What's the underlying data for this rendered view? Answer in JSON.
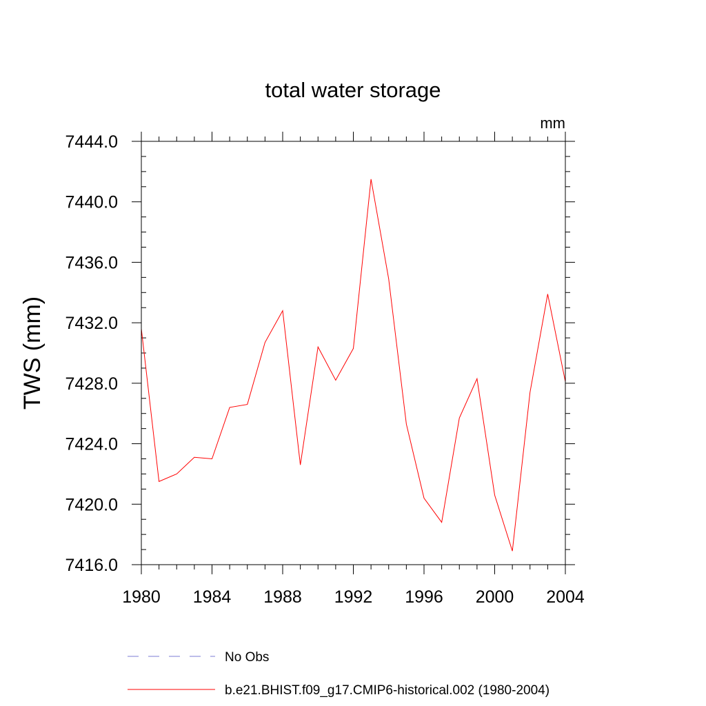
{
  "chart_data": {
    "type": "line",
    "title": "total water storage",
    "units": "mm",
    "xlabel": "",
    "ylabel": "TWS  (mm)",
    "xlim": [
      1980,
      2004
    ],
    "ylim": [
      7416,
      7444
    ],
    "grid": false,
    "x_ticks": [
      1980,
      1984,
      1988,
      1992,
      1996,
      2000,
      2004
    ],
    "x_tick_labels": [
      "1980",
      "1984",
      "1988",
      "1992",
      "1996",
      "2000",
      "2004"
    ],
    "y_ticks": [
      7416,
      7420,
      7424,
      7428,
      7432,
      7436,
      7440,
      7444
    ],
    "y_tick_labels": [
      "7416.0",
      "7420.0",
      "7424.0",
      "7428.0",
      "7432.0",
      "7436.0",
      "7440.0",
      "7444.0"
    ],
    "y_minor_step": 1,
    "x_minor_step": 1,
    "x": [
      1980,
      1981,
      1982,
      1983,
      1984,
      1985,
      1986,
      1987,
      1988,
      1989,
      1990,
      1991,
      1992,
      1993,
      1994,
      1995,
      1996,
      1997,
      1998,
      1999,
      2000,
      2001,
      2002,
      2003,
      2004
    ],
    "series": [
      {
        "name": "b.e21.BHIST.f09_g17.CMIP6-historical.002 (1980-2004)",
        "color": "#ff0000",
        "dash": "solid",
        "values": [
          7431.6,
          7421.5,
          7422.0,
          7423.1,
          7423.0,
          7426.4,
          7426.6,
          7430.7,
          7432.8,
          7422.6,
          7430.4,
          7428.2,
          7430.3,
          7441.5,
          7434.9,
          7425.3,
          7420.4,
          7418.8,
          7425.7,
          7428.3,
          7420.6,
          7416.9,
          7427.4,
          7433.9,
          7428.1
        ]
      }
    ],
    "legend": {
      "placement": "bottom-left",
      "entries": [
        {
          "label": "No Obs",
          "color": "#7b7bd6",
          "dash": "dashed"
        },
        {
          "label": "b.e21.BHIST.f09_g17.CMIP6-historical.002 (1980-2004)",
          "color": "#ff0000",
          "dash": "solid"
        }
      ]
    }
  }
}
